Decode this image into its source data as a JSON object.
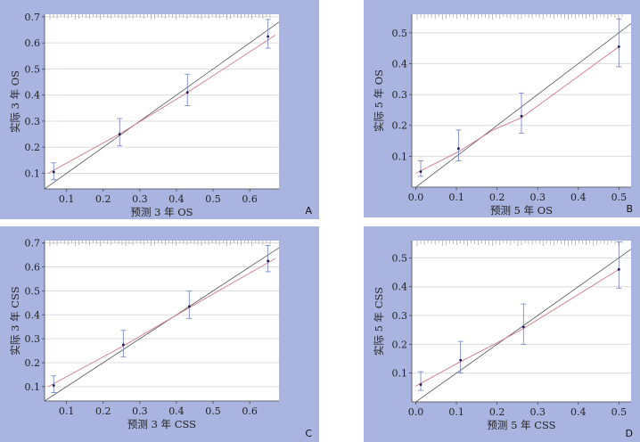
{
  "chart_data": [
    {
      "type": "scatter",
      "panel_label": "A",
      "xlabel": "预测 3 年 OS",
      "ylabel": "实际 3 年 OS",
      "xlim": [
        0.04,
        0.68
      ],
      "ylim": [
        0.04,
        0.71
      ],
      "xticks": [
        "0.1",
        "0.2",
        "0.3",
        "0.4",
        "0.5",
        "0.6"
      ],
      "yticks": [
        "0.1",
        "0.2",
        "0.3",
        "0.4",
        "0.5",
        "0.6",
        "0.7"
      ],
      "grid": "horizontal",
      "points": [
        {
          "x": 0.065,
          "y": 0.105,
          "lo": 0.075,
          "hi": 0.14
        },
        {
          "x": 0.245,
          "y": 0.25,
          "lo": 0.205,
          "hi": 0.31
        },
        {
          "x": 0.43,
          "y": 0.41,
          "lo": 0.36,
          "hi": 0.48
        },
        {
          "x": 0.65,
          "y": 0.625,
          "lo": 0.58,
          "hi": 0.69
        }
      ],
      "ideal_line": [
        [
          0.04,
          0.04
        ],
        [
          0.68,
          0.68
        ]
      ],
      "fit_line": [
        [
          0.05,
          0.1
        ],
        [
          0.25,
          0.255
        ],
        [
          0.43,
          0.41
        ],
        [
          0.67,
          0.63
        ]
      ],
      "rug": true
    },
    {
      "type": "scatter",
      "panel_label": "B",
      "xlabel": "预测 5 年 OS",
      "ylabel": "实际 5 年 OS",
      "xlim": [
        -0.01,
        0.53
      ],
      "ylim": [
        0.0,
        0.56
      ],
      "xticks": [
        "0.0",
        "0.1",
        "0.2",
        "0.3",
        "0.4",
        "0.5"
      ],
      "yticks": [
        "0.1",
        "0.2",
        "0.3",
        "0.4",
        "0.5"
      ],
      "grid": "horizontal",
      "points": [
        {
          "x": 0.012,
          "y": 0.05,
          "lo": 0.035,
          "hi": 0.085
        },
        {
          "x": 0.105,
          "y": 0.125,
          "lo": 0.085,
          "hi": 0.185
        },
        {
          "x": 0.26,
          "y": 0.23,
          "lo": 0.175,
          "hi": 0.305
        },
        {
          "x": 0.5,
          "y": 0.455,
          "lo": 0.39,
          "hi": 0.545
        }
      ],
      "ideal_line": [
        [
          -0.01,
          -0.01
        ],
        [
          0.53,
          0.53
        ]
      ],
      "fit_line": [
        [
          0.0,
          0.045
        ],
        [
          0.105,
          0.115
        ],
        [
          0.19,
          0.185
        ],
        [
          0.26,
          0.225
        ],
        [
          0.5,
          0.455
        ]
      ],
      "rug": true
    },
    {
      "type": "scatter",
      "panel_label": "C",
      "xlabel": "预测 3 年 CSS",
      "ylabel": "实际 3 年 CSS",
      "xlim": [
        0.04,
        0.68
      ],
      "ylim": [
        0.04,
        0.71
      ],
      "xticks": [
        "0.1",
        "0.2",
        "0.3",
        "0.4",
        "0.5",
        "0.6"
      ],
      "yticks": [
        "0.1",
        "0.2",
        "0.3",
        "0.4",
        "0.5",
        "0.6",
        "0.7"
      ],
      "grid": "horizontal",
      "points": [
        {
          "x": 0.065,
          "y": 0.105,
          "lo": 0.075,
          "hi": 0.145
        },
        {
          "x": 0.255,
          "y": 0.275,
          "lo": 0.225,
          "hi": 0.335
        },
        {
          "x": 0.435,
          "y": 0.435,
          "lo": 0.385,
          "hi": 0.5
        },
        {
          "x": 0.65,
          "y": 0.625,
          "lo": 0.58,
          "hi": 0.69
        }
      ],
      "ideal_line": [
        [
          0.04,
          0.04
        ],
        [
          0.68,
          0.68
        ]
      ],
      "fit_line": [
        [
          0.05,
          0.1
        ],
        [
          0.255,
          0.27
        ],
        [
          0.435,
          0.43
        ],
        [
          0.67,
          0.635
        ]
      ],
      "rug": true
    },
    {
      "type": "scatter",
      "panel_label": "D",
      "xlabel": "预测 5 年 CSS",
      "ylabel": "实际 5 年 CSS",
      "xlim": [
        -0.01,
        0.53
      ],
      "ylim": [
        0.0,
        0.56
      ],
      "xticks": [
        "0.0",
        "0.1",
        "0.2",
        "0.3",
        "0.4",
        "0.5"
      ],
      "yticks": [
        "0.1",
        "0.2",
        "0.3",
        "0.4",
        "0.5"
      ],
      "grid": "horizontal",
      "points": [
        {
          "x": 0.012,
          "y": 0.06,
          "lo": 0.04,
          "hi": 0.105
        },
        {
          "x": 0.11,
          "y": 0.145,
          "lo": 0.1,
          "hi": 0.21
        },
        {
          "x": 0.265,
          "y": 0.26,
          "lo": 0.2,
          "hi": 0.34
        },
        {
          "x": 0.5,
          "y": 0.46,
          "lo": 0.395,
          "hi": 0.555
        }
      ],
      "ideal_line": [
        [
          -0.01,
          -0.01
        ],
        [
          0.53,
          0.53
        ]
      ],
      "fit_line": [
        [
          0.0,
          0.055
        ],
        [
          0.11,
          0.14
        ],
        [
          0.2,
          0.205
        ],
        [
          0.265,
          0.255
        ],
        [
          0.5,
          0.46
        ]
      ],
      "rug": true
    }
  ],
  "colors": {
    "background": "#aab4e0",
    "plot_area": "#ffffff",
    "grid": "#dcdcdc",
    "ideal_line": "#555555",
    "fit_line": "#d07a8a",
    "error_bar": "#6e7ec8",
    "point": "#1a1a55",
    "rug": "#a0a0a0"
  }
}
